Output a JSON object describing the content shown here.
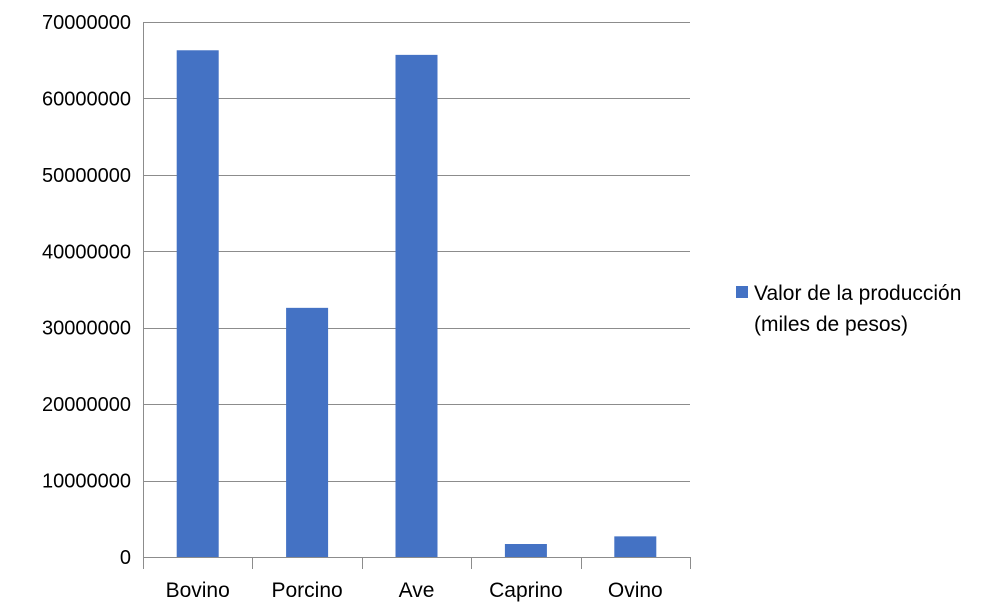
{
  "chart_data": {
    "type": "bar",
    "title": "",
    "xlabel": "",
    "ylabel": "",
    "categories": [
      "Bovino",
      "Porcino",
      "Ave",
      "Caprino",
      "Ovino"
    ],
    "series": [
      {
        "name": "Valor de la producción (miles de pesos)",
        "values": [
          66300000,
          32600000,
          65700000,
          1700000,
          2700000
        ],
        "color": "#4472C4"
      }
    ],
    "ylim": [
      0,
      70000000
    ],
    "yticks": [
      "0",
      "10000000",
      "20000000",
      "30000000",
      "40000000",
      "50000000",
      "60000000",
      "70000000"
    ],
    "grid": true,
    "legend": {
      "position": "right",
      "lines": [
        "Valor de la producción",
        "(miles de pesos)"
      ]
    },
    "colors": {
      "bar": "#4472C4",
      "grid": "#8C8C8C",
      "axis": "#8C8C8C"
    }
  }
}
